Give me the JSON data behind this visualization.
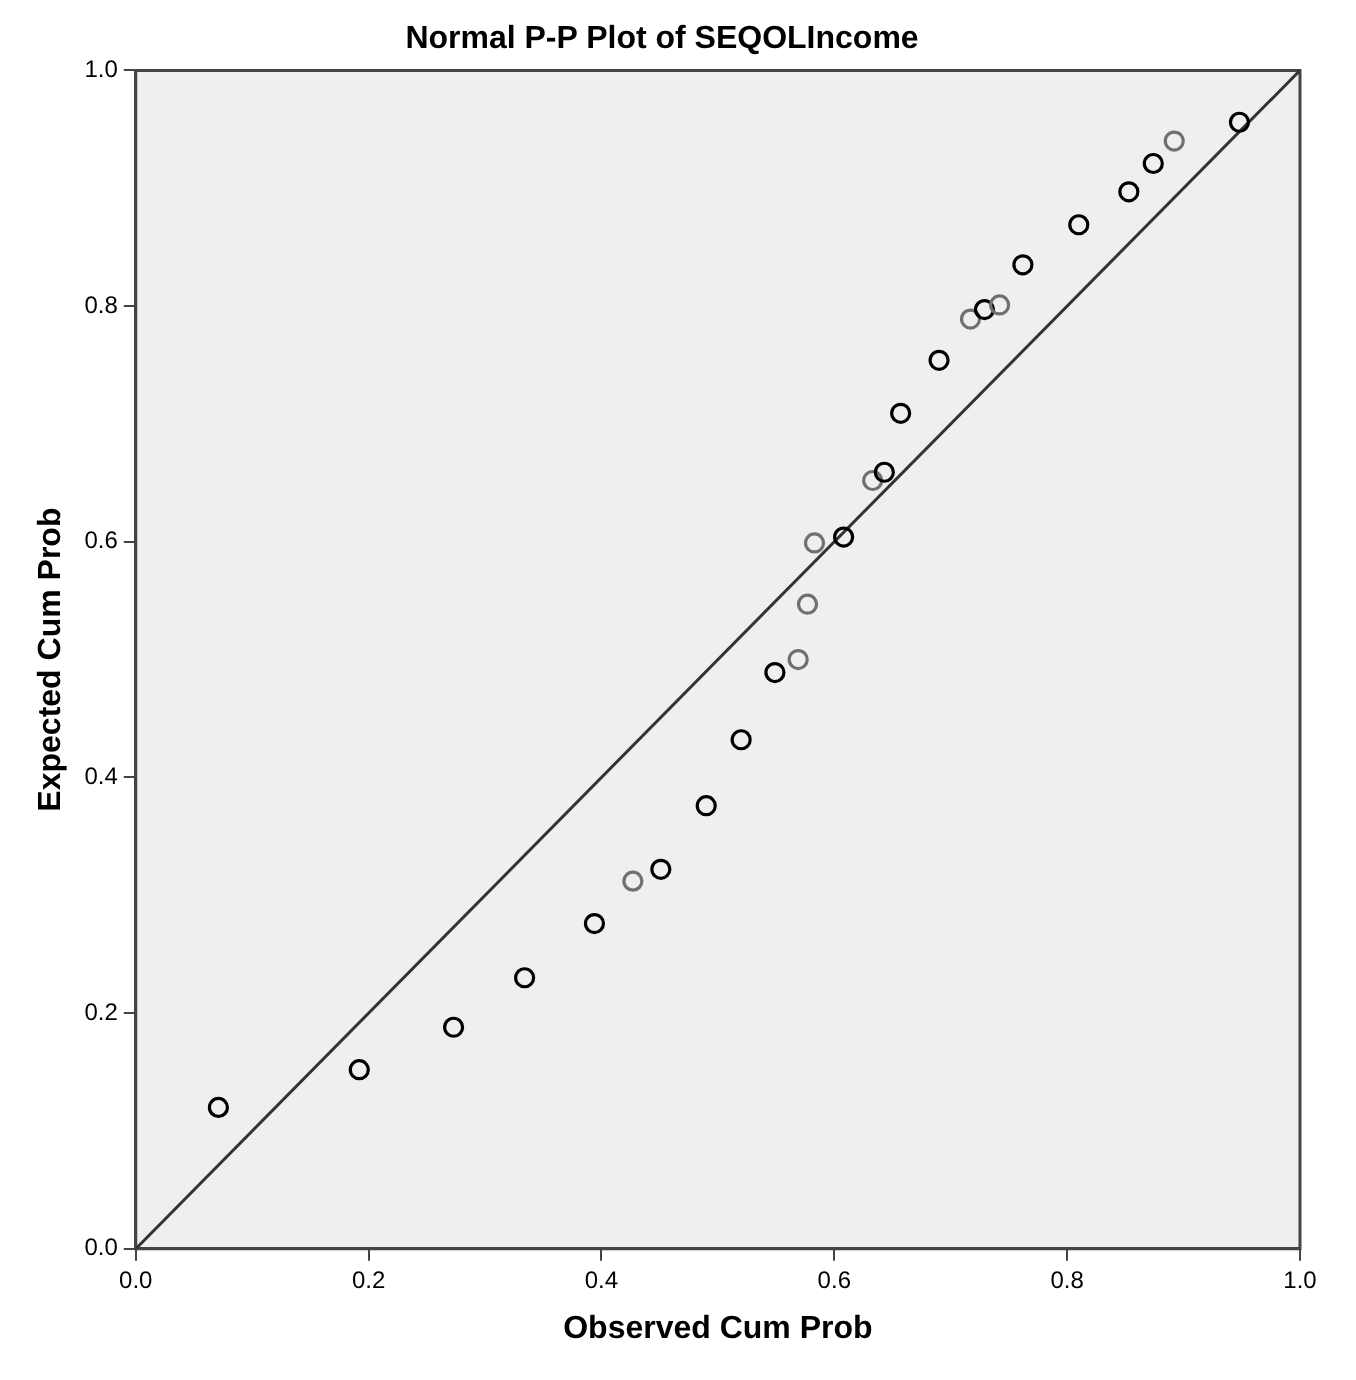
{
  "chart_data": {
    "type": "scatter",
    "title": "Normal P-P Plot of SEQOLIncome",
    "xlabel": "Observed Cum Prob",
    "ylabel": "Expected Cum Prob",
    "xlim": [
      0,
      1
    ],
    "ylim": [
      0,
      1
    ],
    "xticks": [
      {
        "value": 0,
        "label": "0.0"
      },
      {
        "value": 0.2,
        "label": "0.2"
      },
      {
        "value": 0.4,
        "label": "0.4"
      },
      {
        "value": 0.6,
        "label": "0.6"
      },
      {
        "value": 0.8,
        "label": "0.8"
      },
      {
        "value": 1,
        "label": "1.0"
      }
    ],
    "yticks": [
      {
        "value": 0,
        "label": "0.0"
      },
      {
        "value": 0.2,
        "label": "0.2"
      },
      {
        "value": 0.4,
        "label": "0.4"
      },
      {
        "value": 0.6,
        "label": "0.6"
      },
      {
        "value": 0.8,
        "label": "0.8"
      },
      {
        "value": 1,
        "label": "1.0"
      }
    ],
    "grid": false,
    "legend": false,
    "marker": "circle",
    "series": [
      {
        "x": [
          0.071,
          0.192,
          0.273,
          0.334,
          0.394,
          0.427,
          0.451,
          0.49,
          0.52,
          0.549,
          0.569,
          0.577,
          0.583,
          0.608,
          0.633,
          0.643,
          0.657,
          0.69,
          0.717,
          0.729,
          0.742,
          0.762,
          0.81,
          0.853,
          0.874,
          0.892,
          0.948
        ],
        "values": [
          0.12,
          0.152,
          0.188,
          0.23,
          0.276,
          0.312,
          0.322,
          0.376,
          0.432,
          0.489,
          0.5,
          0.547,
          0.599,
          0.604,
          0.652,
          0.659,
          0.709,
          0.754,
          0.789,
          0.797,
          0.801,
          0.835,
          0.869,
          0.897,
          0.921,
          0.94,
          0.956
        ],
        "colors": [
          "#000000",
          "#000000",
          "#000000",
          "#000000",
          "#000000",
          "#707070",
          "#000000",
          "#000000",
          "#000000",
          "#000000",
          "#707070",
          "#707070",
          "#707070",
          "#000000",
          "#707070",
          "#000000",
          "#000000",
          "#000000",
          "#707070",
          "#000000",
          "#707070",
          "#000000",
          "#000000",
          "#000000",
          "#000000",
          "#707070",
          "#000000"
        ]
      },
      {
        "type": "line",
        "color": "#333333",
        "x": [
          0,
          1
        ],
        "values": [
          0,
          1
        ],
        "marker": "none"
      }
    ]
  }
}
